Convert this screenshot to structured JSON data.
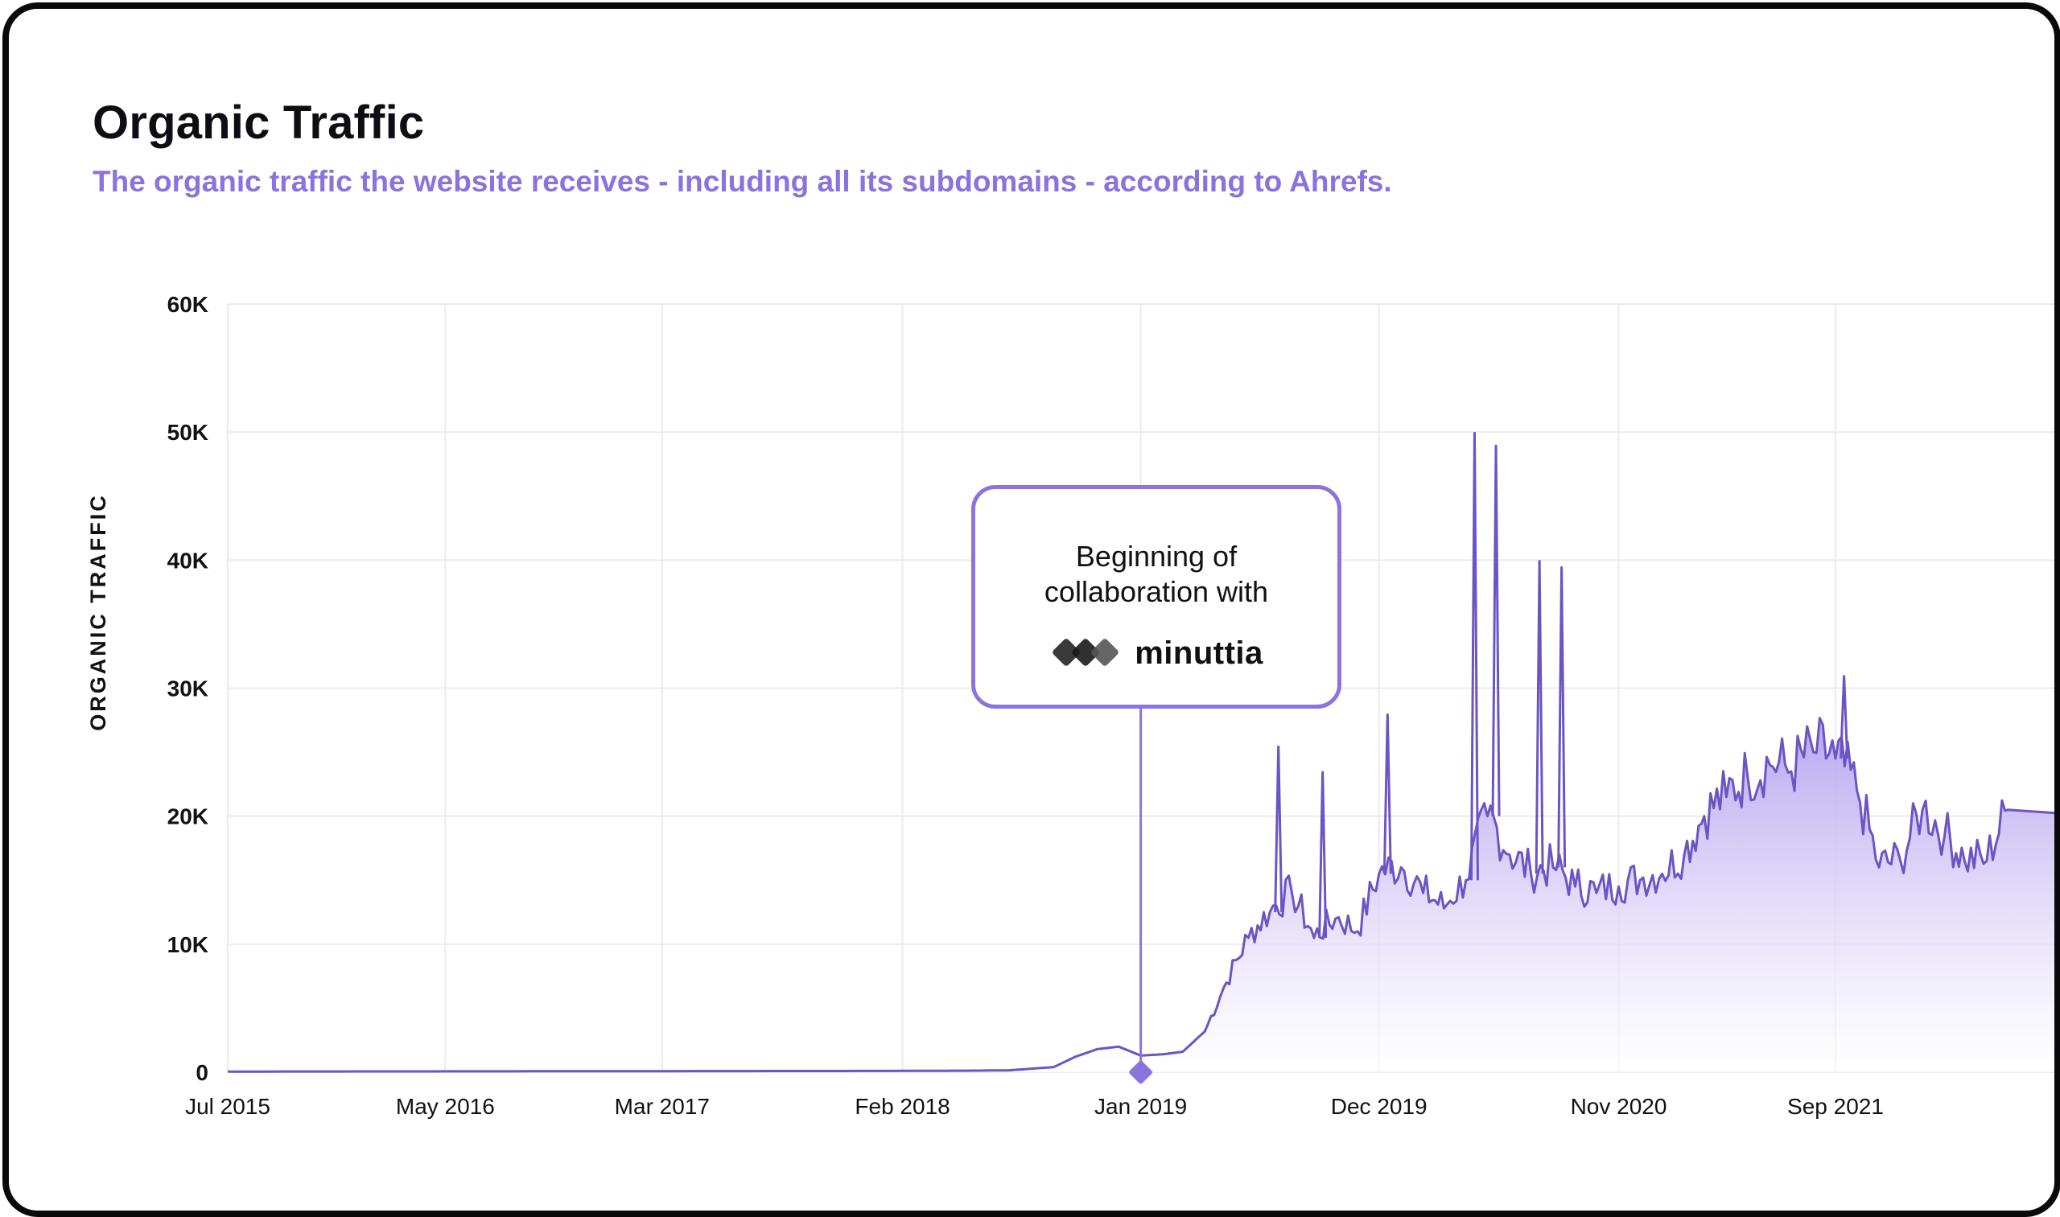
{
  "title": "Organic Traffic",
  "subtitle": "The organic traffic the website receives - including all its subdomains - according to Ahrefs.",
  "annotation": {
    "line1": "Beginning of",
    "line2": "collaboration with",
    "brand": "minuttia",
    "x_date": "2019-01"
  },
  "colors": {
    "line": "#6b54c4",
    "area_top": "#b3a1ef",
    "accent": "#8b73e0",
    "grid": "#ebebef"
  },
  "chart_data": {
    "type": "area",
    "title": "",
    "xlabel": "",
    "ylabel": "ORGANIC TRAFFIC",
    "y_ticks": [
      "0",
      "10K",
      "20K",
      "30K",
      "40K",
      "50K",
      "60K"
    ],
    "ylim": [
      0,
      60000
    ],
    "x_ticks": [
      "Jul 2015",
      "May 2016",
      "Mar 2017",
      "Feb 2018",
      "Jan 2019",
      "Dec 2019",
      "Nov 2020",
      "Sep 2021"
    ],
    "grid": true,
    "series": [
      {
        "x": [
          "2015-07",
          "2016-01",
          "2016-07",
          "2017-01",
          "2017-07",
          "2018-01",
          "2018-05",
          "2018-07",
          "2018-09",
          "2018-10",
          "2018-11",
          "2018-12",
          "2019-01",
          "2019-02",
          "2019-03",
          "2019-04",
          "2019-05",
          "2019-06",
          "2019-07",
          "2019-08",
          "2019-09",
          "2019-10",
          "2019-11",
          "2019-12",
          "2020-01",
          "2020-02",
          "2020-03",
          "2020-04",
          "2020-05",
          "2020-06",
          "2020-07",
          "2020-08",
          "2020-09",
          "2020-10",
          "2020-11",
          "2020-12",
          "2021-01",
          "2021-02",
          "2021-03",
          "2021-04",
          "2021-05",
          "2021-06",
          "2021-07",
          "2021-08",
          "2021-09",
          "2021-10",
          "2021-11",
          "2021-12",
          "2022-01",
          "2022-02",
          "2022-03",
          "2022-04",
          "2022-05"
        ],
        "y": [
          50,
          60,
          70,
          80,
          90,
          100,
          120,
          150,
          400,
          1200,
          1800,
          2000,
          1300,
          1400,
          1600,
          3200,
          7000,
          10500,
          12500,
          14000,
          10500,
          12000,
          11000,
          15500,
          16000,
          14000,
          12800,
          15000,
          20000,
          17000,
          15500,
          16000,
          14500,
          14000,
          14500,
          15000,
          15500,
          17000,
          20000,
          21500,
          23000,
          24000,
          23500,
          25000,
          24500,
          22000,
          16000,
          16500,
          20500,
          18500,
          16500,
          16500,
          20500
        ]
      }
    ],
    "spikes": [
      {
        "x": "2019-07",
        "y": 25500
      },
      {
        "x": "2019-09",
        "y": 23500
      },
      {
        "x": "2019-12",
        "y": 28000
      },
      {
        "x": "2020-04",
        "y": 50000
      },
      {
        "x": "2020-05",
        "y": 49000
      },
      {
        "x": "2020-07",
        "y": 40000
      },
      {
        "x": "2020-08",
        "y": 39500
      },
      {
        "x": "2021-09",
        "y": 31000
      }
    ]
  }
}
